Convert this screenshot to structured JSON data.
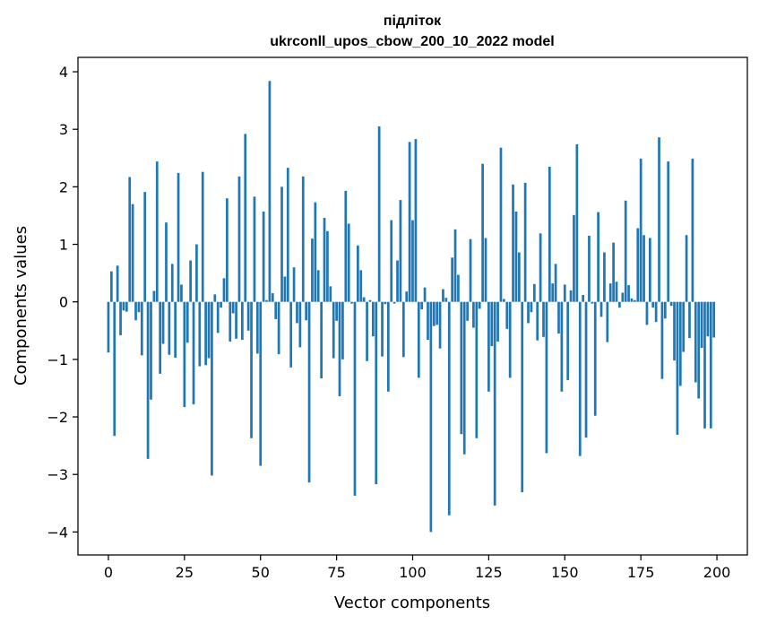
{
  "chart_data": {
    "type": "bar",
    "title": "підліток",
    "subtitle": "ukrconll_upos_cbow_200_10_2022 model",
    "xlabel": "Vector components",
    "ylabel": "Components values",
    "xlim": [
      -10,
      210
    ],
    "ylim": [
      -4.4,
      4.25
    ],
    "xticks": [
      0,
      25,
      50,
      75,
      100,
      125,
      150,
      175,
      200
    ],
    "yticks": [
      -4,
      -3,
      -2,
      -1,
      0,
      1,
      2,
      3,
      4
    ],
    "grid": false,
    "bar_color": "#1f77b4",
    "x": [
      0,
      1,
      2,
      3,
      4,
      5,
      6,
      7,
      8,
      9,
      10,
      11,
      12,
      13,
      14,
      15,
      16,
      17,
      18,
      19,
      20,
      21,
      22,
      23,
      24,
      25,
      26,
      27,
      28,
      29,
      30,
      31,
      32,
      33,
      34,
      35,
      36,
      37,
      38,
      39,
      40,
      41,
      42,
      43,
      44,
      45,
      46,
      47,
      48,
      49,
      50,
      51,
      52,
      53,
      54,
      55,
      56,
      57,
      58,
      59,
      60,
      61,
      62,
      63,
      64,
      65,
      66,
      67,
      68,
      69,
      70,
      71,
      72,
      73,
      74,
      75,
      76,
      77,
      78,
      79,
      80,
      81,
      82,
      83,
      84,
      85,
      86,
      87,
      88,
      89,
      90,
      91,
      92,
      93,
      94,
      95,
      96,
      97,
      98,
      99,
      100,
      101,
      102,
      103,
      104,
      105,
      106,
      107,
      108,
      109,
      110,
      111,
      112,
      113,
      114,
      115,
      116,
      117,
      118,
      119,
      120,
      121,
      122,
      123,
      124,
      125,
      126,
      127,
      128,
      129,
      130,
      131,
      132,
      133,
      134,
      135,
      136,
      137,
      138,
      139,
      140,
      141,
      142,
      143,
      144,
      145,
      146,
      147,
      148,
      149,
      150,
      151,
      152,
      153,
      154,
      155,
      156,
      157,
      158,
      159,
      160,
      161,
      162,
      163,
      164,
      165,
      166,
      167,
      168,
      169,
      170,
      171,
      172,
      173,
      174,
      175,
      176,
      177,
      178,
      179,
      180,
      181,
      182,
      183,
      184,
      185,
      186,
      187,
      188,
      189,
      190,
      191,
      192,
      193,
      194,
      195,
      196,
      197,
      198,
      199
    ],
    "values": [
      -0.88,
      0.53,
      -2.33,
      0.63,
      -0.58,
      -0.15,
      -0.17,
      2.17,
      1.7,
      -0.32,
      -0.18,
      -0.93,
      1.91,
      -2.73,
      -1.7,
      0.19,
      2.44,
      -1.25,
      -0.73,
      1.38,
      -0.92,
      0.66,
      -0.97,
      2.24,
      0.3,
      -1.83,
      -0.71,
      0.72,
      -1.78,
      1.0,
      -1.12,
      2.26,
      -1.1,
      -0.98,
      -3.02,
      0.13,
      -0.54,
      -0.1,
      0.41,
      1.8,
      -0.69,
      -0.2,
      -0.64,
      2.18,
      -0.66,
      2.92,
      -0.5,
      -2.37,
      1.83,
      -0.9,
      -2.85,
      1.57,
      0.03,
      3.84,
      0.15,
      -0.3,
      -0.91,
      2.0,
      0.44,
      2.33,
      -1.14,
      0.6,
      -0.37,
      -0.79,
      2.18,
      -0.32,
      -3.14,
      1.1,
      1.73,
      0.55,
      -1.33,
      1.46,
      1.23,
      0.27,
      -0.98,
      -0.33,
      -1.64,
      -1.0,
      1.93,
      1.36,
      -0.03,
      -3.37,
      0.98,
      0.55,
      0.08,
      -1.03,
      0.03,
      -0.6,
      -3.17,
      3.05,
      -0.95,
      -0.04,
      -1.56,
      1.42,
      -0.03,
      0.72,
      1.77,
      -0.96,
      0.18,
      2.78,
      1.42,
      2.83,
      -1.32,
      -0.13,
      0.25,
      -0.66,
      -4.0,
      -0.42,
      -0.4,
      -0.81,
      0.22,
      0.07,
      -3.71,
      0.77,
      1.26,
      0.47,
      -2.3,
      -2.65,
      -0.33,
      1.09,
      -0.45,
      -2.37,
      -0.12,
      2.4,
      1.11,
      -1.56,
      -0.77,
      -3.54,
      -0.69,
      2.68,
      0.05,
      -0.47,
      -1.32,
      2.04,
      1.57,
      0.86,
      -3.31,
      2.07,
      -0.37,
      -0.18,
      0.31,
      -0.67,
      1.19,
      -0.61,
      -2.63,
      2.35,
      0.32,
      0.66,
      -0.55,
      -1.56,
      0.3,
      -1.36,
      0.2,
      1.51,
      2.74,
      -2.68,
      0.12,
      -2.36,
      1.15,
      -0.03,
      -1.98,
      1.56,
      -0.26,
      0.86,
      -0.7,
      0.32,
      1.03,
      0.35,
      -0.1,
      0.16,
      1.76,
      0.29,
      0.06,
      0.03,
      1.28,
      2.49,
      1.16,
      -0.4,
      1.11,
      -0.1,
      -0.35,
      2.86,
      -1.34,
      -0.29,
      2.44,
      -0.07,
      -1.02,
      -2.31,
      -1.46,
      -0.87,
      1.16,
      -0.63,
      2.49,
      -1.4,
      -1.68,
      -0.8,
      -2.2,
      -0.6,
      -2.2,
      -0.62
    ]
  }
}
